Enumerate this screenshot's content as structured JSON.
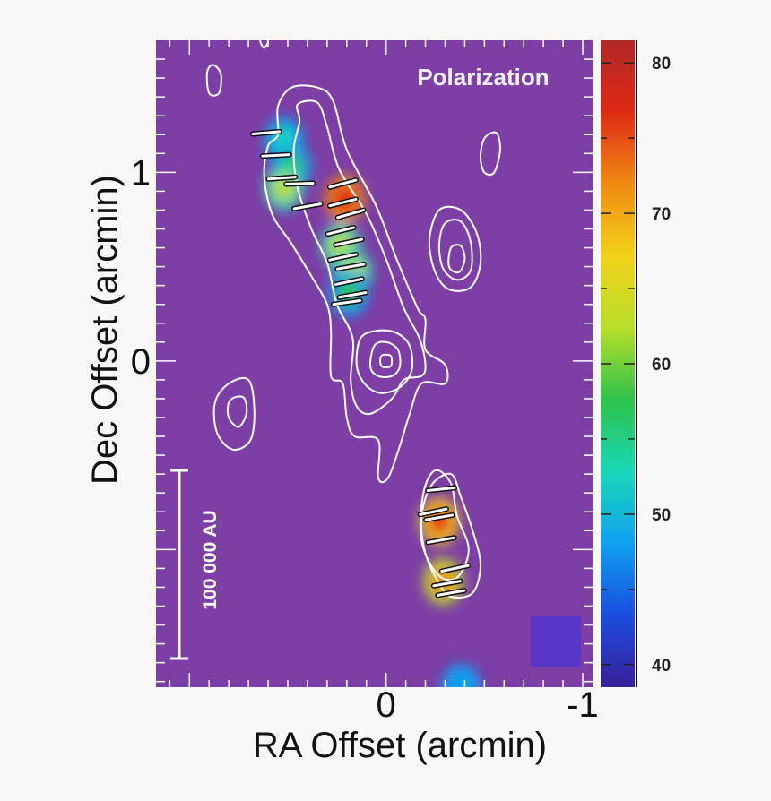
{
  "chart_data": {
    "type": "heatmap",
    "title": "",
    "panel_label": "Polarization",
    "xlabel": "RA  Offset  (arcmin)",
    "ylabel": "Dec  Offset  (arcmin)",
    "x_axis_reversed": true,
    "xlim": [
      1.17,
      -1.05
    ],
    "ylim": [
      -1.73,
      1.7
    ],
    "x_ticks": [
      {
        "value": 0,
        "label": "0"
      },
      {
        "value": -1,
        "label": "-1"
      }
    ],
    "y_ticks": [
      {
        "value": 1,
        "label": "1"
      },
      {
        "value": 0,
        "label": "0"
      }
    ],
    "colorbar": {
      "min": 38.5,
      "max": 81.5,
      "ticks": [
        {
          "value": 80,
          "label": "80"
        },
        {
          "value": 70,
          "label": "70"
        },
        {
          "value": 60,
          "label": "60"
        },
        {
          "value": 50,
          "label": "50"
        },
        {
          "value": 40,
          "label": "40"
        }
      ],
      "colormap": [
        "#3a1f9a",
        "#1a4de0",
        "#0fa0f0",
        "#19d8b8",
        "#2ec24a",
        "#b8de2a",
        "#f2d21a",
        "#f08a12",
        "#e02a14",
        "#b02828"
      ]
    },
    "background_color": "#7d3ea6",
    "contour_color": "#ffffff",
    "scale_bar": {
      "label": "100 000 AU"
    },
    "polarization_blobs": [
      {
        "x": 0.52,
        "y": 1.17,
        "value": 52
      },
      {
        "x": 0.48,
        "y": 1.03,
        "value": 58
      },
      {
        "x": 0.52,
        "y": 0.92,
        "value": 60
      },
      {
        "x": 0.21,
        "y": 0.86,
        "value": 78
      },
      {
        "x": 0.23,
        "y": 0.61,
        "value": 63
      },
      {
        "x": 0.17,
        "y": 0.47,
        "value": 62
      },
      {
        "x": 0.19,
        "y": 0.36,
        "value": 58
      },
      {
        "x": -0.27,
        "y": -0.85,
        "value": 76
      },
      {
        "x": -0.29,
        "y": -1.17,
        "value": 72
      },
      {
        "x": -0.38,
        "y": -1.73,
        "value": 46
      }
    ],
    "polarization_vectors": [
      {
        "x": 0.61,
        "y": 1.21,
        "pa": 5
      },
      {
        "x": 0.56,
        "y": 1.09,
        "pa": 3
      },
      {
        "x": 0.53,
        "y": 0.97,
        "pa": 4
      },
      {
        "x": 0.44,
        "y": 0.94,
        "pa": 2
      },
      {
        "x": 0.4,
        "y": 0.82,
        "pa": 10
      },
      {
        "x": 0.22,
        "y": 0.94,
        "pa": 15
      },
      {
        "x": 0.22,
        "y": 0.84,
        "pa": 14
      },
      {
        "x": 0.18,
        "y": 0.78,
        "pa": 16
      },
      {
        "x": 0.23,
        "y": 0.69,
        "pa": 14
      },
      {
        "x": 0.19,
        "y": 0.63,
        "pa": 12
      },
      {
        "x": 0.22,
        "y": 0.55,
        "pa": 12
      },
      {
        "x": 0.18,
        "y": 0.5,
        "pa": 10
      },
      {
        "x": 0.19,
        "y": 0.42,
        "pa": 12
      },
      {
        "x": 0.17,
        "y": 0.35,
        "pa": 10
      },
      {
        "x": 0.2,
        "y": 0.31,
        "pa": 8
      },
      {
        "x": -0.28,
        "y": -0.68,
        "pa": 6
      },
      {
        "x": -0.24,
        "y": -0.8,
        "pa": 12
      },
      {
        "x": -0.27,
        "y": -0.83,
        "pa": 10
      },
      {
        "x": -0.28,
        "y": -0.95,
        "pa": 10
      },
      {
        "x": -0.35,
        "y": -1.1,
        "pa": 12
      },
      {
        "x": -0.31,
        "y": -1.18,
        "pa": 10
      },
      {
        "x": -0.33,
        "y": -1.23,
        "pa": 10
      }
    ],
    "contours": [
      {
        "name": "",
        "points": [
          [
            0.55,
            1.2
          ],
          [
            0.55,
            1.35
          ],
          [
            0.48,
            1.45
          ],
          [
            0.35,
            1.45
          ],
          [
            0.27,
            1.38
          ],
          [
            0.2,
            1.12
          ],
          [
            0.05,
            0.82
          ],
          [
            -0.05,
            0.55
          ],
          [
            -0.16,
            0.28
          ],
          [
            -0.2,
            0.22
          ],
          [
            -0.2,
            0.06
          ],
          [
            -0.3,
            -0.02
          ],
          [
            -0.3,
            -0.12
          ],
          [
            -0.18,
            -0.12
          ],
          [
            -0.12,
            -0.28
          ],
          [
            -0.07,
            -0.45
          ],
          [
            -0.01,
            -0.62
          ],
          [
            0.04,
            -0.62
          ],
          [
            0.04,
            -0.42
          ],
          [
            0.16,
            -0.4
          ],
          [
            0.2,
            -0.3
          ],
          [
            0.22,
            -0.12
          ],
          [
            0.28,
            -0.08
          ],
          [
            0.28,
            0.16
          ],
          [
            0.3,
            0.3
          ],
          [
            0.38,
            0.45
          ],
          [
            0.48,
            0.62
          ],
          [
            0.58,
            0.78
          ],
          [
            0.62,
            0.98
          ],
          [
            0.6,
            1.14
          ]
        ]
      },
      {
        "name": "",
        "points": [
          [
            0.44,
            1.27
          ],
          [
            0.45,
            1.36
          ],
          [
            0.35,
            1.37
          ],
          [
            0.3,
            1.24
          ],
          [
            0.24,
            1.02
          ],
          [
            0.1,
            0.78
          ],
          [
            0.0,
            0.54
          ],
          [
            -0.09,
            0.28
          ],
          [
            -0.17,
            0.12
          ],
          [
            -0.2,
            -0.02
          ],
          [
            -0.18,
            -0.08
          ],
          [
            -0.09,
            -0.1
          ],
          [
            -0.03,
            -0.2
          ],
          [
            0.08,
            -0.28
          ],
          [
            0.15,
            -0.24
          ],
          [
            0.18,
            -0.1
          ],
          [
            0.17,
            0.12
          ],
          [
            0.25,
            0.3
          ],
          [
            0.3,
            0.52
          ],
          [
            0.38,
            0.7
          ],
          [
            0.45,
            0.92
          ],
          [
            0.47,
            1.12
          ]
        ]
      },
      {
        "name": "",
        "points": [
          [
            0.13,
            0.12
          ],
          [
            0.05,
            0.16
          ],
          [
            -0.05,
            0.15
          ],
          [
            -0.12,
            0.08
          ],
          [
            -0.13,
            -0.05
          ],
          [
            -0.07,
            -0.14
          ],
          [
            0.03,
            -0.17
          ],
          [
            0.11,
            -0.12
          ],
          [
            0.15,
            -0.02
          ]
        ]
      },
      {
        "name": "",
        "points": [
          [
            0.06,
            0.08
          ],
          [
            0.0,
            0.1
          ],
          [
            -0.06,
            0.06
          ],
          [
            -0.07,
            -0.03
          ],
          [
            -0.03,
            -0.08
          ],
          [
            0.04,
            -0.08
          ],
          [
            0.08,
            -0.03
          ]
        ]
      },
      {
        "name": "",
        "points": [
          [
            0.02,
            0.03
          ],
          [
            -0.02,
            0.03
          ],
          [
            -0.03,
            0.0
          ],
          [
            -0.02,
            -0.03
          ],
          [
            0.02,
            -0.03
          ],
          [
            0.03,
            0.0
          ]
        ]
      },
      {
        "name": "",
        "points": [
          [
            -0.25,
            -0.58
          ],
          [
            -0.19,
            -0.7
          ],
          [
            -0.18,
            -0.95
          ],
          [
            -0.26,
            -1.13
          ],
          [
            -0.36,
            -1.15
          ],
          [
            -0.42,
            -1.0
          ],
          [
            -0.36,
            -0.82
          ],
          [
            -0.33,
            -0.65
          ]
        ]
      },
      {
        "name": "",
        "points": [
          [
            -0.23,
            -0.66
          ],
          [
            -0.18,
            -0.83
          ],
          [
            -0.2,
            -1.02
          ],
          [
            -0.27,
            -1.18
          ],
          [
            -0.33,
            -1.25
          ],
          [
            -0.44,
            -1.23
          ],
          [
            -0.48,
            -1.08
          ],
          [
            -0.44,
            -0.9
          ],
          [
            -0.38,
            -0.72
          ],
          [
            -0.33,
            -0.6
          ]
        ]
      },
      {
        "name": "",
        "points": [
          [
            0.8,
            -0.12
          ],
          [
            0.7,
            -0.1
          ],
          [
            0.67,
            -0.26
          ],
          [
            0.69,
            -0.42
          ],
          [
            0.78,
            -0.47
          ],
          [
            0.86,
            -0.38
          ],
          [
            0.87,
            -0.22
          ]
        ]
      },
      {
        "name": "",
        "points": [
          [
            0.76,
            -0.19
          ],
          [
            0.72,
            -0.2
          ],
          [
            0.71,
            -0.28
          ],
          [
            0.75,
            -0.35
          ],
          [
            0.8,
            -0.3
          ],
          [
            0.8,
            -0.22
          ]
        ]
      },
      {
        "name": "",
        "points": [
          [
            -0.27,
            0.8
          ],
          [
            -0.38,
            0.8
          ],
          [
            -0.46,
            0.68
          ],
          [
            -0.48,
            0.52
          ],
          [
            -0.43,
            0.39
          ],
          [
            -0.32,
            0.38
          ],
          [
            -0.25,
            0.47
          ],
          [
            -0.22,
            0.64
          ]
        ]
      },
      {
        "name": "",
        "points": [
          [
            -0.3,
            0.73
          ],
          [
            -0.38,
            0.74
          ],
          [
            -0.43,
            0.63
          ],
          [
            -0.43,
            0.48
          ],
          [
            -0.36,
            0.43
          ],
          [
            -0.29,
            0.49
          ],
          [
            -0.27,
            0.62
          ]
        ]
      },
      {
        "name": "",
        "points": [
          [
            -0.33,
            0.6
          ],
          [
            -0.38,
            0.61
          ],
          [
            -0.4,
            0.54
          ],
          [
            -0.37,
            0.47
          ],
          [
            -0.32,
            0.5
          ]
        ]
      },
      {
        "name": "",
        "points": [
          [
            -0.5,
            1.18
          ],
          [
            -0.56,
            1.21
          ],
          [
            -0.58,
            1.12
          ],
          [
            -0.55,
            1.0
          ],
          [
            -0.5,
            1.0
          ],
          [
            -0.48,
            1.08
          ]
        ]
      },
      {
        "name": "",
        "points": [
          [
            0.88,
            1.57
          ],
          [
            0.91,
            1.53
          ],
          [
            0.9,
            1.42
          ],
          [
            0.85,
            1.42
          ],
          [
            0.84,
            1.52
          ]
        ]
      },
      {
        "name": "",
        "points": [
          [
            0.64,
            1.7
          ],
          [
            0.62,
            1.66
          ],
          [
            0.6,
            1.7
          ]
        ]
      }
    ]
  }
}
